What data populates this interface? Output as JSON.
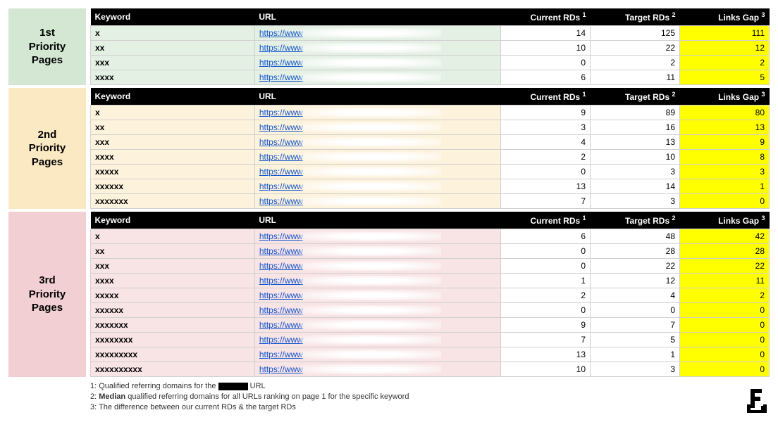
{
  "columns": {
    "keyword": "Keyword",
    "url": "URL",
    "current": "Current RDs",
    "target": "Target RDs",
    "gap": "Links Gap"
  },
  "section_colors": {
    "p1_label": "#d3e7d3",
    "p1_row": "#e4f0e4",
    "p2_label": "#fbe9c4",
    "p2_row": "#fdf2dc",
    "p3_label": "#f2cfd2",
    "p3_row": "#f8e3e5"
  },
  "sections": [
    {
      "id": "p1",
      "title": "1st Priority Pages",
      "rows": [
        {
          "kw": "x",
          "url": "https://www",
          "cur": 14,
          "tgt": 125,
          "gap": 111
        },
        {
          "kw": "xx",
          "url": "https://www",
          "cur": 10,
          "tgt": 22,
          "gap": 12
        },
        {
          "kw": "xxx",
          "url": "https://www",
          "cur": 0,
          "tgt": 2,
          "gap": 2
        },
        {
          "kw": "xxxx",
          "url": "https://www",
          "cur": 6,
          "tgt": 11,
          "gap": 5
        }
      ]
    },
    {
      "id": "p2",
      "title": "2nd Priority Pages",
      "rows": [
        {
          "kw": "x",
          "url": "https://www",
          "cur": 9,
          "tgt": 89,
          "gap": 80
        },
        {
          "kw": "xx",
          "url": "https://www",
          "cur": 3,
          "tgt": 16,
          "gap": 13
        },
        {
          "kw": "xxx",
          "url": "https://www",
          "cur": 4,
          "tgt": 13,
          "gap": 9
        },
        {
          "kw": "xxxx",
          "url": "https://www",
          "cur": 2,
          "tgt": 10,
          "gap": 8
        },
        {
          "kw": "xxxxx",
          "url": "https://www",
          "cur": 0,
          "tgt": 3,
          "gap": 3
        },
        {
          "kw": "xxxxxx",
          "url": "https://www",
          "cur": 13,
          "tgt": 14,
          "gap": 1
        },
        {
          "kw": "xxxxxxx",
          "url": "https://www",
          "cur": 7,
          "tgt": 3,
          "gap": 0
        }
      ]
    },
    {
      "id": "p3",
      "title": "3rd Priority Pages",
      "rows": [
        {
          "kw": "x",
          "url": "https://www",
          "cur": 6,
          "tgt": 48,
          "gap": 42
        },
        {
          "kw": "xx",
          "url": "https://www",
          "cur": 0,
          "tgt": 28,
          "gap": 28
        },
        {
          "kw": "xxx",
          "url": "https://www",
          "cur": 0,
          "tgt": 22,
          "gap": 22
        },
        {
          "kw": "xxxx",
          "url": "https://www",
          "cur": 1,
          "tgt": 12,
          "gap": 11
        },
        {
          "kw": "xxxxx",
          "url": "https://www",
          "cur": 2,
          "tgt": 4,
          "gap": 2
        },
        {
          "kw": "xxxxxx",
          "url": "https://www",
          "cur": 0,
          "tgt": 0,
          "gap": 0
        },
        {
          "kw": "xxxxxxx",
          "url": "https://www",
          "cur": 9,
          "tgt": 7,
          "gap": 0
        },
        {
          "kw": "xxxxxxxx",
          "url": "https://www",
          "cur": 7,
          "tgt": 5,
          "gap": 0
        },
        {
          "kw": "xxxxxxxxx",
          "url": "https://www",
          "cur": 13,
          "tgt": 1,
          "gap": 0
        },
        {
          "kw": "xxxxxxxxxx",
          "url": "https://www",
          "cur": 10,
          "tgt": 3,
          "gap": 0
        }
      ]
    }
  ],
  "footnotes": {
    "f1a": "1: Qualified referring domains for the",
    "f1b": "URL",
    "f2a": "2: ",
    "f2bold": "Median",
    "f2b": " qualified referring domains for all URLs ranking on page 1 for the specific keyword",
    "f3": "3: The difference between our current RDs & the target RDs"
  }
}
